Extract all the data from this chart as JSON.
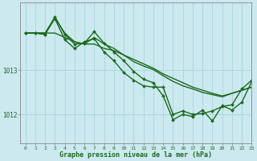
{
  "bg_color": "#cce9f0",
  "grid_color": "#b0d8e2",
  "line_color": "#1a6b1a",
  "xlabel": "Graphe pression niveau de la mer (hPa)",
  "ylabel_ticks": [
    1012,
    1013
  ],
  "xlim": [
    -0.5,
    23
  ],
  "ylim": [
    1011.35,
    1014.55
  ],
  "x_ticks": [
    0,
    1,
    2,
    3,
    4,
    5,
    6,
    7,
    8,
    9,
    10,
    11,
    12,
    13,
    14,
    15,
    16,
    17,
    18,
    19,
    20,
    21,
    22,
    23
  ],
  "series": [
    {
      "y": [
        1013.85,
        1013.85,
        1013.85,
        1013.85,
        1013.75,
        1013.65,
        1013.6,
        1013.6,
        1013.5,
        1013.45,
        1013.35,
        1013.25,
        1013.15,
        1013.05,
        1012.92,
        1012.82,
        1012.72,
        1012.62,
        1012.55,
        1012.48,
        1012.42,
        1012.48,
        1012.55,
        1012.62
      ],
      "markers": false,
      "lw": 1.0
    },
    {
      "y": [
        1013.85,
        1013.85,
        1013.85,
        1014.2,
        1013.85,
        1013.65,
        1013.6,
        1013.75,
        1013.6,
        1013.5,
        1013.35,
        1013.2,
        1013.1,
        1013.02,
        1012.88,
        1012.75,
        1012.65,
        1012.58,
        1012.5,
        1012.45,
        1012.4,
        1012.48,
        1012.55,
        1012.62
      ],
      "markers": false,
      "lw": 1.0
    },
    {
      "y": [
        1013.85,
        1013.85,
        1013.82,
        1014.18,
        1013.7,
        1013.5,
        1013.65,
        1013.72,
        1013.42,
        1013.22,
        1012.95,
        1012.78,
        1012.65,
        1012.62,
        1012.62,
        1012.0,
        1012.08,
        1012.0,
        1012.02,
        1012.08,
        1012.18,
        1012.22,
        1012.58,
        1012.78
      ],
      "markers": true,
      "lw": 1.0
    },
    {
      "y": [
        1013.85,
        1013.85,
        1013.82,
        1014.22,
        1013.82,
        1013.6,
        1013.62,
        1013.88,
        1013.62,
        1013.42,
        1013.22,
        1012.98,
        1012.8,
        1012.72,
        1012.42,
        1011.88,
        1012.0,
        1011.95,
        1012.1,
        1011.85,
        1012.2,
        1012.1,
        1012.28,
        1012.75
      ],
      "markers": true,
      "lw": 1.0
    }
  ]
}
